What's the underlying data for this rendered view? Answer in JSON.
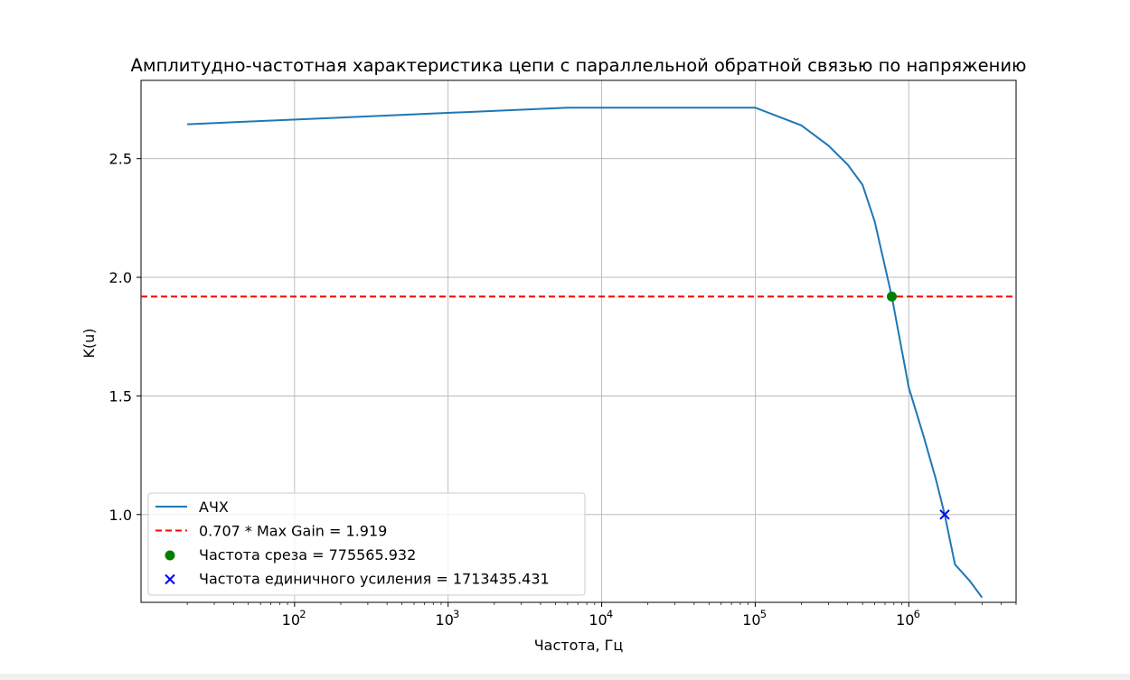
{
  "chart_data": {
    "type": "line",
    "title": "Амплитудно-частотная характеристика цепи с параллельной обратной связью по напряжению",
    "xlabel": "Частота, Гц",
    "ylabel": "K(u)",
    "xscale": "log",
    "xlim": [
      10,
      5000000
    ],
    "ylim": [
      0.63,
      2.83
    ],
    "grid": true,
    "legend_position": "lower left",
    "x_ticks": [
      {
        "base": "10",
        "exp": "2",
        "value": 100
      },
      {
        "base": "10",
        "exp": "3",
        "value": 1000
      },
      {
        "base": "10",
        "exp": "4",
        "value": 10000
      },
      {
        "base": "10",
        "exp": "5",
        "value": 100000
      },
      {
        "base": "10",
        "exp": "6",
        "value": 1000000
      }
    ],
    "y_ticks": [
      {
        "label": "1.0",
        "value": 1.0
      },
      {
        "label": "1.5",
        "value": 1.5
      },
      {
        "label": "2.0",
        "value": 2.0
      },
      {
        "label": "2.5",
        "value": 2.5
      }
    ],
    "series": [
      {
        "name": "АЧХ",
        "kind": "line",
        "color": "#1f77b4",
        "x": [
          20,
          6000,
          100000,
          200000,
          300000,
          400000,
          500000,
          600000,
          775566,
          1000000,
          1250000,
          1500000,
          1713435,
          2000000,
          2500000,
          3000000
        ],
        "y": [
          2.645,
          2.715,
          2.715,
          2.64,
          2.555,
          2.475,
          2.39,
          2.235,
          1.919,
          1.535,
          1.33,
          1.15,
          1.0,
          0.79,
          0.72,
          0.65
        ]
      },
      {
        "name": "0.707 * Max Gain = 1.919",
        "kind": "hline",
        "color": "#ff0000",
        "y": 1.919
      },
      {
        "name": "Частота среза = 775565.932",
        "kind": "point",
        "marker": "circle",
        "color": "#008000",
        "x": 775565.932,
        "y": 1.919
      },
      {
        "name": "Частота единичного усиления = 1713435.431",
        "kind": "point",
        "marker": "x",
        "color": "#0000ff",
        "x": 1713435.431,
        "y": 1.0
      }
    ]
  }
}
